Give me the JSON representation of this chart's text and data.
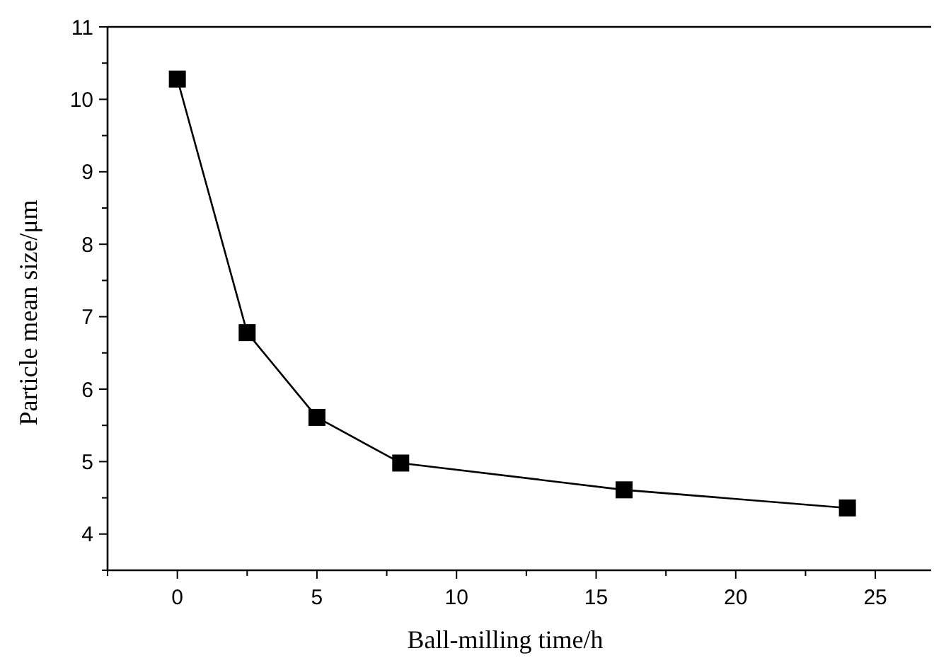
{
  "chart_data": {
    "type": "line",
    "xlabel": "Ball-milling time/h",
    "ylabel": "Particle mean size/μm",
    "x": [
      0,
      2.5,
      5,
      8,
      16,
      24
    ],
    "series": [
      {
        "color": "#000000",
        "values": [
          10.28,
          6.78,
          5.61,
          4.98,
          4.61,
          4.36
        ]
      }
    ],
    "xlim": [
      -2.5,
      27
    ],
    "ylim": [
      3.5,
      11
    ],
    "xticks": [
      {
        "value": -2.5,
        "label": null
      },
      0,
      {
        "value": 2.5,
        "label": null
      },
      5,
      {
        "value": 7.5,
        "label": null
      },
      10,
      {
        "value": 12.5,
        "label": null
      },
      15,
      {
        "value": 17.5,
        "label": null
      },
      20,
      {
        "value": 22.5,
        "label": null
      },
      25
    ],
    "yticks": [
      {
        "value": 3.5,
        "label": null
      },
      4,
      {
        "value": 4.5,
        "label": null
      },
      5,
      {
        "value": 5.5,
        "label": null
      },
      6,
      {
        "value": 6.5,
        "label": null
      },
      7,
      {
        "value": 7.5,
        "label": null
      },
      8,
      {
        "value": 8.5,
        "label": null
      },
      9,
      {
        "value": 9.5,
        "label": null
      },
      10,
      {
        "value": 10.5,
        "label": null
      },
      11
    ],
    "marker": "square",
    "line_style": "solid"
  }
}
